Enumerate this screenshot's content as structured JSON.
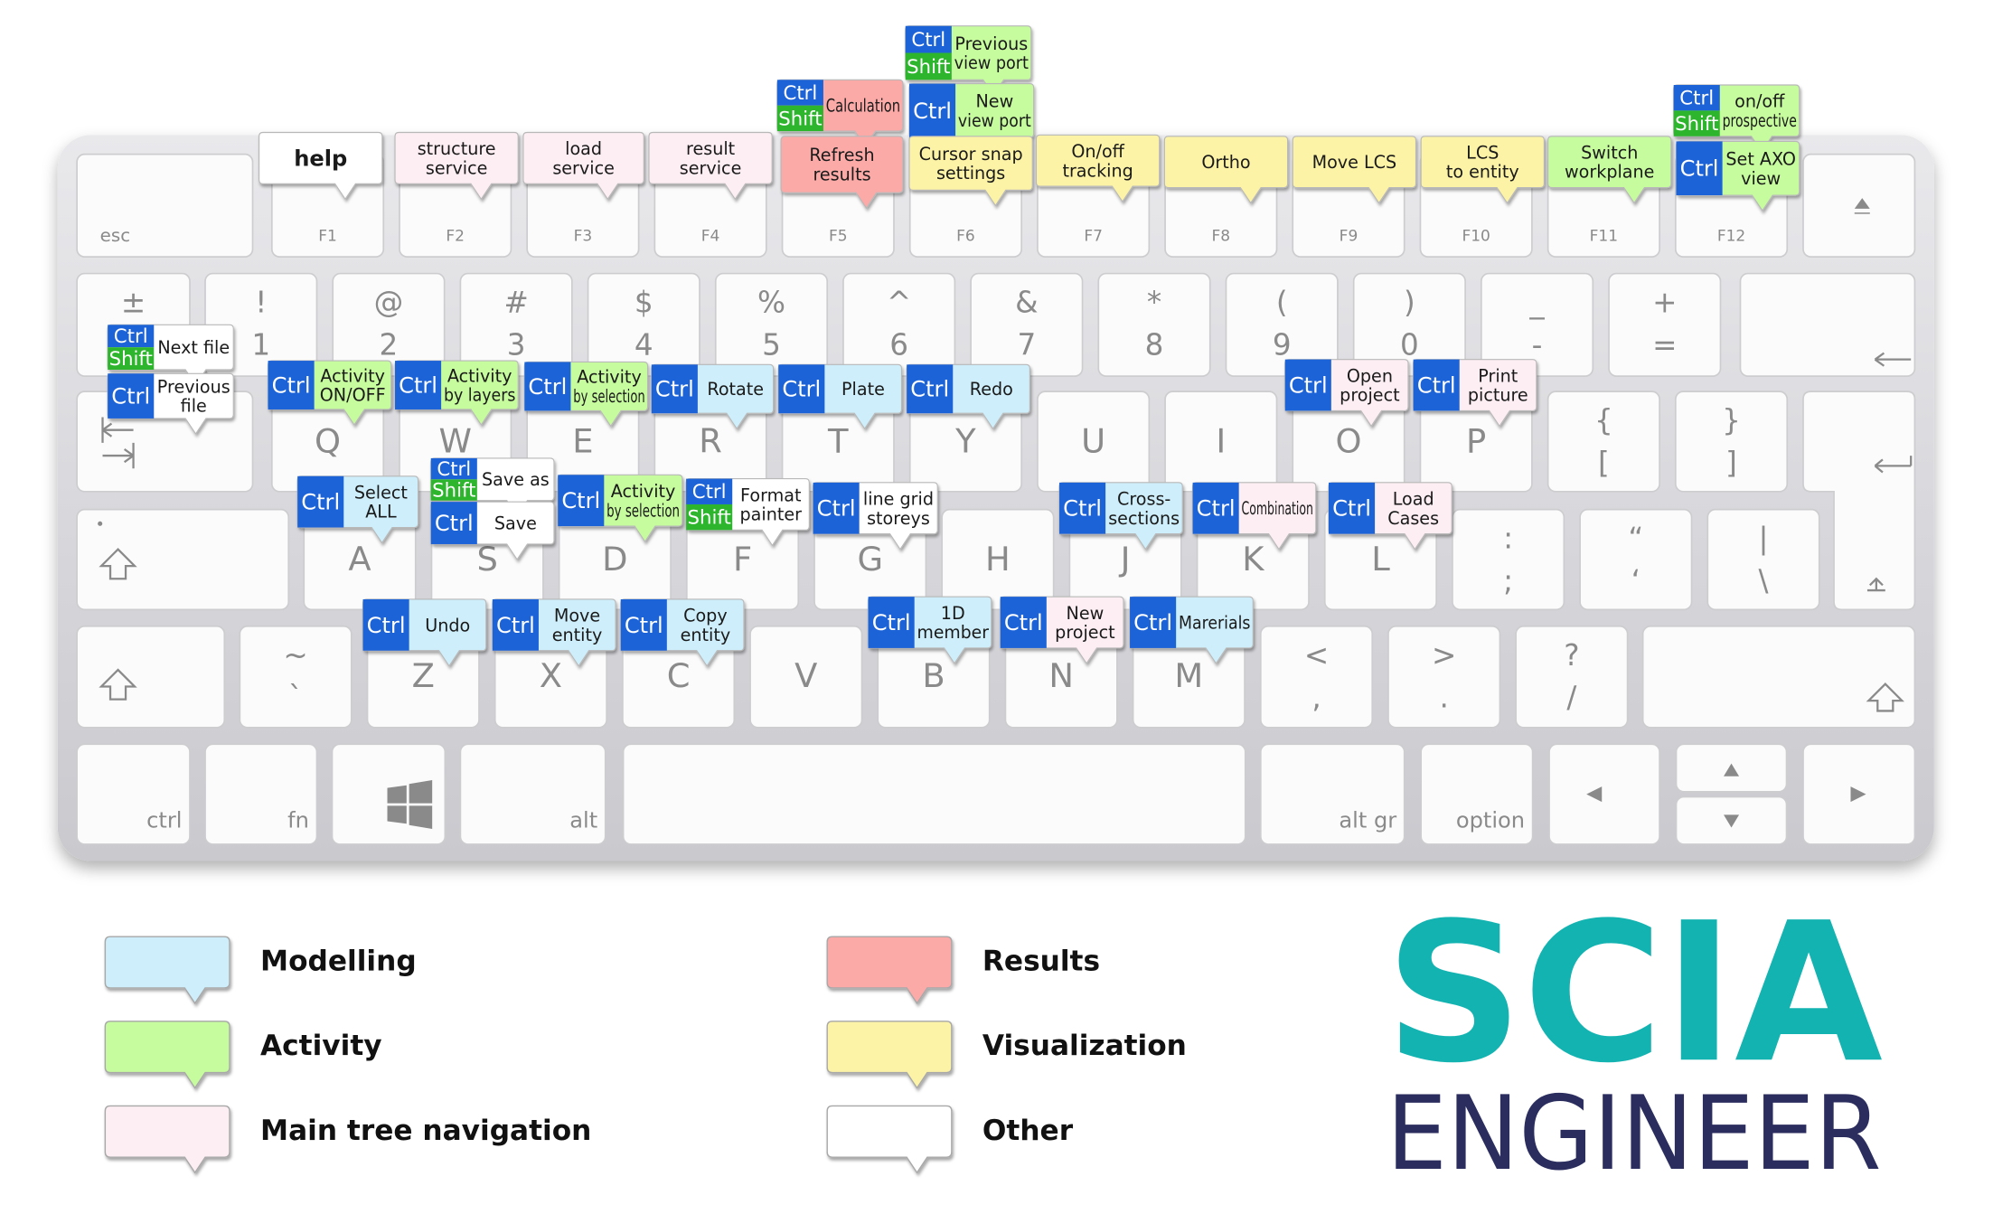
{
  "keyboard": {
    "rows": [
      [
        "esc",
        "F1",
        "F2",
        "F3",
        "F4",
        "F5",
        "F6",
        "F7",
        "F8",
        "F9",
        "F10",
        "F11",
        "F12",
        null
      ],
      [
        [
          "±"
        ],
        [
          "!",
          "1"
        ],
        [
          "@",
          "2"
        ],
        [
          "#",
          "3"
        ],
        [
          "$",
          "4"
        ],
        [
          "%",
          "5"
        ],
        [
          "^",
          "6"
        ],
        [
          "&",
          "7"
        ],
        [
          "*",
          "8"
        ],
        [
          "(",
          "9"
        ],
        [
          ")",
          "0"
        ],
        [
          "_",
          "-"
        ],
        [
          "+",
          "="
        ],
        null
      ],
      [
        null,
        "Q",
        "W",
        "E",
        "R",
        "T",
        "Y",
        "U",
        "I",
        "O",
        "P",
        [
          "{",
          "["
        ],
        [
          "}",
          "]"
        ],
        null
      ],
      [
        null,
        "A",
        "S",
        "D",
        "F",
        "G",
        "H",
        "J",
        "K",
        "L",
        [
          ":",
          ";"
        ],
        [
          "“",
          "‘"
        ],
        [
          "|",
          "\\"
        ]
      ],
      [
        null,
        [
          "~",
          "`"
        ],
        "Z",
        "X",
        "C",
        "V",
        "B",
        "N",
        "M",
        [
          "<",
          ","
        ],
        [
          ">",
          "."
        ],
        [
          "?",
          "/"
        ],
        null
      ],
      [
        "ctrl",
        "fn",
        null,
        "alt",
        null,
        "alt gr",
        "option",
        null,
        null,
        null
      ]
    ]
  },
  "callouts": [
    {
      "type": "Other",
      "keys": [],
      "lines": [
        "help"
      ],
      "bold": true
    },
    {
      "type": "Main tree navigation",
      "keys": [],
      "lines": [
        "structure",
        "service"
      ]
    },
    {
      "type": "Main tree navigation",
      "keys": [],
      "lines": [
        "load",
        "service"
      ]
    },
    {
      "type": "Main tree navigation",
      "keys": [],
      "lines": [
        "result",
        "service"
      ]
    },
    {
      "type": "Results",
      "keys": [
        "Ctrl",
        "Shift"
      ],
      "lines": [
        "Calculation"
      ]
    },
    {
      "type": "Results",
      "keys": [],
      "lines": [
        "Refresh",
        "results"
      ]
    },
    {
      "type": "Activity",
      "keys": [
        "Ctrl",
        "Shift"
      ],
      "lines": [
        "Previous",
        "view port"
      ]
    },
    {
      "type": "Activity",
      "keys": [
        "Ctrl"
      ],
      "lines": [
        "New",
        "view port"
      ]
    },
    {
      "type": "Visualization",
      "keys": [],
      "lines": [
        "Cursor snap",
        "settings"
      ]
    },
    {
      "type": "Visualization",
      "keys": [],
      "lines": [
        "On/off",
        "tracking"
      ]
    },
    {
      "type": "Visualization",
      "keys": [],
      "lines": [
        "Ortho"
      ]
    },
    {
      "type": "Visualization",
      "keys": [],
      "lines": [
        "Move LCS"
      ]
    },
    {
      "type": "Visualization",
      "keys": [],
      "lines": [
        "LCS",
        "to entity"
      ]
    },
    {
      "type": "Activity",
      "keys": [],
      "lines": [
        "Switch",
        "workplane"
      ]
    },
    {
      "type": "Activity",
      "keys": [
        "Ctrl",
        "Shift"
      ],
      "lines": [
        "on/off",
        "prospective"
      ]
    },
    {
      "type": "Activity",
      "keys": [
        "Ctrl"
      ],
      "lines": [
        "Set AXO",
        "view"
      ]
    },
    {
      "type": "Other",
      "keys": [
        "Ctrl",
        "Shift"
      ],
      "lines": [
        "Next file"
      ]
    },
    {
      "type": "Other",
      "keys": [
        "Ctrl"
      ],
      "lines": [
        "Previous",
        "file"
      ]
    },
    {
      "type": "Activity",
      "keys": [
        "Ctrl"
      ],
      "lines": [
        "Activity",
        "ON/OFF"
      ]
    },
    {
      "type": "Activity",
      "keys": [
        "Ctrl"
      ],
      "lines": [
        "Activity",
        "by layers"
      ]
    },
    {
      "type": "Activity",
      "keys": [
        "Ctrl"
      ],
      "lines": [
        "Activity",
        "by selection"
      ]
    },
    {
      "type": "Modelling",
      "keys": [
        "Ctrl"
      ],
      "lines": [
        "Rotate"
      ]
    },
    {
      "type": "Modelling",
      "keys": [
        "Ctrl"
      ],
      "lines": [
        "Plate"
      ]
    },
    {
      "type": "Modelling",
      "keys": [
        "Ctrl"
      ],
      "lines": [
        "Redo"
      ]
    },
    {
      "type": "Main tree navigation",
      "keys": [
        "Ctrl"
      ],
      "lines": [
        "Open",
        "project"
      ]
    },
    {
      "type": "Main tree navigation",
      "keys": [
        "Ctrl"
      ],
      "lines": [
        "Print",
        "picture"
      ]
    },
    {
      "type": "Other",
      "keys": [
        "Ctrl",
        "Shift"
      ],
      "lines": [
        "Save as"
      ]
    },
    {
      "type": "Other",
      "keys": [
        "Ctrl"
      ],
      "lines": [
        "Save"
      ]
    },
    {
      "type": "Modelling",
      "keys": [
        "Ctrl"
      ],
      "lines": [
        "Select",
        "ALL"
      ]
    },
    {
      "type": "Activity",
      "keys": [
        "Ctrl"
      ],
      "lines": [
        "Activity",
        "by selection"
      ]
    },
    {
      "type": "Other",
      "keys": [
        "Ctrl",
        "Shift"
      ],
      "lines": [
        "Format",
        "painter"
      ]
    },
    {
      "type": "Other",
      "keys": [
        "Ctrl"
      ],
      "lines": [
        "line grid",
        "storeys"
      ]
    },
    {
      "type": "Modelling",
      "keys": [
        "Ctrl"
      ],
      "lines": [
        "Cross-",
        "sections"
      ]
    },
    {
      "type": "Main tree navigation",
      "keys": [
        "Ctrl"
      ],
      "lines": [
        "Combination"
      ]
    },
    {
      "type": "Main tree navigation",
      "keys": [
        "Ctrl"
      ],
      "lines": [
        "Load",
        "Cases"
      ]
    },
    {
      "type": "Modelling",
      "keys": [
        "Ctrl"
      ],
      "lines": [
        "Undo"
      ]
    },
    {
      "type": "Modelling",
      "keys": [
        "Ctrl"
      ],
      "lines": [
        "Move",
        "entity"
      ]
    },
    {
      "type": "Modelling",
      "keys": [
        "Ctrl"
      ],
      "lines": [
        "Copy",
        "entity"
      ]
    },
    {
      "type": "Modelling",
      "keys": [
        "Ctrl"
      ],
      "lines": [
        "1D",
        "member"
      ]
    },
    {
      "type": "Main tree navigation",
      "keys": [
        "Ctrl"
      ],
      "lines": [
        "New",
        "project"
      ]
    },
    {
      "type": "Modelling",
      "keys": [
        "Ctrl"
      ],
      "lines": [
        "Marerials"
      ]
    }
  ],
  "legend": [
    {
      "label": "Modelling",
      "color": "#cdeefa"
    },
    {
      "label": "Activity",
      "color": "#c6fb9e"
    },
    {
      "label": "Main tree navigation",
      "color": "#fdeef3"
    },
    {
      "label": "Results",
      "color": "#fbaaa8"
    },
    {
      "label": "Visualization",
      "color": "#fdf3a6"
    },
    {
      "label": "Other",
      "color": "#ffffff"
    }
  ],
  "logo": {
    "brand": "SCIA",
    "product": "ENGINEER"
  }
}
